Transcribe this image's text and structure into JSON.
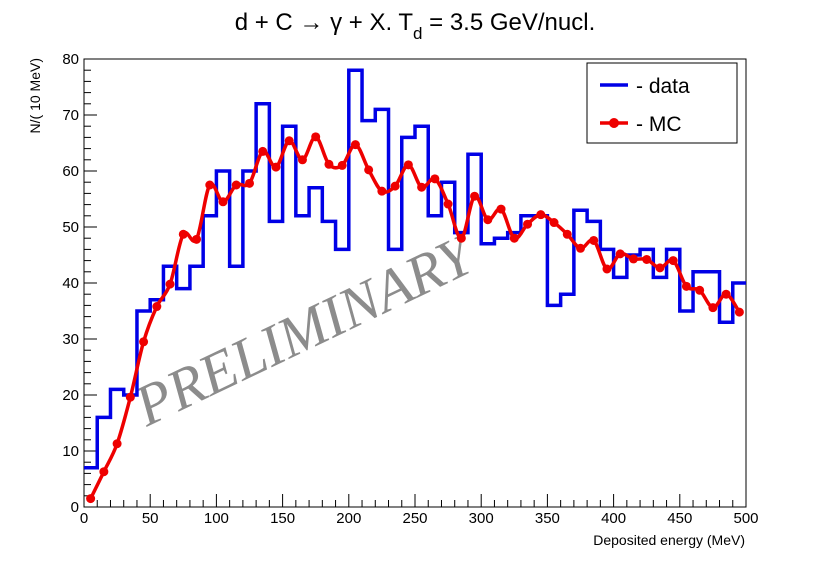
{
  "chart_data": {
    "type": "line",
    "title_main": "d + C → γ + X. T",
    "title_sub": "d",
    "title_tail": " = 3.5 GeV/nucl.",
    "xlabel": "Deposited energy (MeV)",
    "ylabel": "N/( 10 MeV)",
    "xlim": [
      0,
      500
    ],
    "ylim": [
      0,
      80
    ],
    "x_ticks": [
      0,
      50,
      100,
      150,
      200,
      250,
      300,
      350,
      400,
      450,
      500
    ],
    "y_ticks": [
      0,
      10,
      20,
      30,
      40,
      50,
      60,
      70,
      80
    ],
    "watermark": "PRELIMINARY",
    "series": [
      {
        "name": "- data",
        "style": "histogram",
        "color": "#0000e6",
        "bin_width": 10,
        "bin_starts": [
          0,
          10,
          20,
          30,
          40,
          50,
          60,
          70,
          80,
          90,
          100,
          110,
          120,
          130,
          140,
          150,
          160,
          170,
          180,
          190,
          200,
          210,
          220,
          230,
          240,
          250,
          260,
          270,
          280,
          290,
          300,
          310,
          320,
          330,
          340,
          350,
          360,
          370,
          380,
          390,
          400,
          410,
          420,
          430,
          440,
          450,
          460,
          470,
          480,
          490
        ],
        "values": [
          7,
          16,
          21,
          20,
          35,
          37,
          43,
          39,
          43,
          52,
          60,
          43,
          60,
          72,
          51,
          68,
          52,
          57,
          51,
          46,
          78,
          69,
          71,
          46,
          66,
          68,
          52,
          58,
          49,
          63,
          47,
          48,
          49,
          52,
          52,
          36,
          38,
          53,
          51,
          46,
          41,
          45,
          46,
          41,
          46,
          35,
          42,
          42,
          33,
          40
        ]
      },
      {
        "name": "- MC",
        "style": "line-markers",
        "color": "#ee0000",
        "x": [
          5,
          15,
          25,
          35,
          45,
          55,
          65,
          75,
          85,
          95,
          105,
          115,
          125,
          135,
          145,
          155,
          165,
          175,
          185,
          195,
          205,
          215,
          225,
          235,
          245,
          255,
          265,
          275,
          285,
          295,
          305,
          315,
          325,
          335,
          345,
          355,
          365,
          375,
          385,
          395,
          405,
          415,
          425,
          435,
          445,
          455,
          465,
          475,
          485,
          495
        ],
        "values": [
          1.5,
          6.3,
          11.3,
          19.6,
          29.5,
          35.8,
          39.8,
          48.7,
          47.8,
          57.5,
          54.5,
          57.5,
          57.8,
          63.5,
          60.7,
          65.4,
          62.0,
          66.1,
          61.2,
          61.0,
          64.7,
          60.2,
          56.4,
          57.3,
          61.1,
          57.1,
          58.6,
          54.1,
          48.0,
          55.5,
          51.3,
          53.2,
          48.0,
          50.5,
          52.2,
          50.8,
          48.7,
          46.2,
          47.6,
          42.5,
          45.2,
          44.3,
          44.2,
          42.7,
          44.0,
          39.4,
          38.7,
          35.6,
          38.0,
          34.8
        ]
      }
    ],
    "legend": {
      "position": "top-right"
    }
  }
}
